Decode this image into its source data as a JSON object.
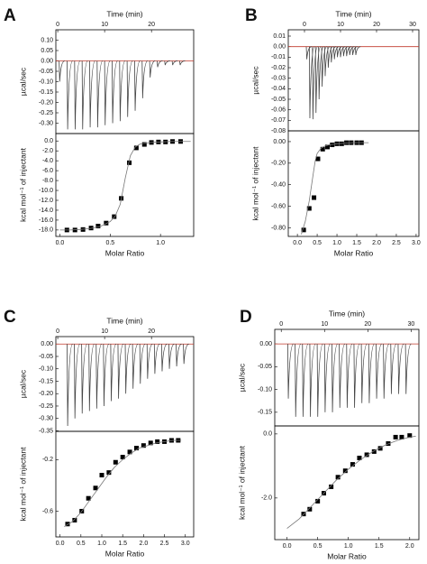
{
  "chart_data": [
    {
      "type": "thermogram",
      "panel": "A",
      "x_label": "Time (min)",
      "y_label": "µcal/sec",
      "xlim": [
        -0.4,
        29
      ],
      "xticks": [
        0,
        10,
        20
      ],
      "ylim": [
        -0.35,
        0.15
      ],
      "yticks": [
        {
          "value": 0.1,
          "label": "0.10"
        },
        0.05,
        {
          "value": 0,
          "label": "0.00"
        },
        -0.05,
        {
          "value": -0.1,
          "label": "-0.10"
        },
        -0.15,
        {
          "value": -0.2,
          "label": "-0.20"
        },
        -0.25,
        {
          "value": -0.3,
          "label": "-0.30"
        }
      ],
      "x": [
        0.3,
        2.0,
        3.6,
        5.2,
        6.8,
        8.4,
        10.0,
        11.6,
        13.2,
        14.8,
        16.4,
        18.0,
        19.6,
        21.2,
        22.8,
        24.4,
        26.0
      ],
      "values": [
        -0.1,
        -0.33,
        -0.33,
        -0.33,
        -0.32,
        -0.32,
        -0.31,
        -0.3,
        -0.29,
        -0.27,
        -0.24,
        -0.18,
        -0.08,
        -0.03,
        -0.02,
        -0.02,
        -0.02
      ],
      "color": "#444444",
      "baseline_color": "#c0392b"
    },
    {
      "type": "scatter",
      "x_label": "Molar Ratio",
      "y_label": "kcal mol⁻¹ of injectant",
      "xlim": [
        -0.04,
        1.33
      ],
      "xticks": [
        {
          "value": 0,
          "label": "0.0"
        },
        0.5,
        {
          "value": 1,
          "label": "1.0"
        }
      ],
      "ylim": [
        -19.3,
        1.5
      ],
      "yticks": [
        {
          "value": 0,
          "label": "0.0"
        },
        {
          "value": -2,
          "label": "-2.0"
        },
        {
          "value": -4,
          "label": "-4.0"
        },
        {
          "value": -6,
          "label": "-6.0"
        },
        {
          "value": -8,
          "label": "-8.0"
        },
        {
          "value": -10,
          "label": "-10.0"
        },
        {
          "value": -12,
          "label": "-12.0"
        },
        {
          "value": -14,
          "label": "-14.0"
        },
        {
          "value": -16,
          "label": "-16.0"
        },
        {
          "value": -18,
          "label": "-18.0"
        }
      ],
      "series": [
        {
          "style": "points",
          "color": "#000000",
          "x": [
            0.07,
            0.15,
            0.23,
            0.31,
            0.38,
            0.46,
            0.54,
            0.61,
            0.69,
            0.76,
            0.84,
            0.91,
            0.98,
            1.05,
            1.12,
            1.2
          ],
          "values": [
            -18.0,
            -18.0,
            -17.9,
            -17.6,
            -17.2,
            -16.6,
            -15.3,
            -11.6,
            -4.4,
            -1.4,
            -0.7,
            -0.3,
            -0.2,
            -0.2,
            -0.1,
            -0.1
          ]
        },
        {
          "style": "line",
          "color": "#777777",
          "x": [
            0,
            0.1,
            0.2,
            0.3,
            0.4,
            0.5,
            0.55,
            0.6,
            0.65,
            0.7,
            0.75,
            0.8,
            0.9,
            1.0,
            1.1,
            1.2,
            1.3
          ],
          "values": [
            -18.0,
            -18.0,
            -17.9,
            -17.7,
            -17.3,
            -16.3,
            -15.2,
            -12.8,
            -7.5,
            -3.0,
            -1.2,
            -0.6,
            -0.3,
            -0.2,
            -0.1,
            -0.1,
            -0.1
          ]
        }
      ]
    },
    {
      "type": "thermogram",
      "panel": "B",
      "x_label": "Time (min)",
      "y_label": "µcal/sec",
      "xlim": [
        -4.5,
        31.75
      ],
      "xticks": [
        0,
        10,
        20,
        30
      ],
      "ylim": [
        -0.08,
        0.016
      ],
      "yticks": [
        0.01,
        {
          "value": 0,
          "label": "0.00"
        },
        -0.01,
        -0.02,
        -0.03,
        -0.04,
        -0.05,
        -0.06,
        -0.07,
        -0.08
      ],
      "x": [
        0.5,
        1.35,
        2.2,
        3.05,
        3.9,
        4.75,
        5.6,
        6.45,
        7.3,
        8.15,
        9.0,
        9.85,
        10.7,
        11.55,
        12.4,
        13.25,
        14.1
      ],
      "values": [
        -0.012,
        -0.068,
        -0.069,
        -0.063,
        -0.05,
        -0.038,
        -0.028,
        -0.02,
        -0.015,
        -0.012,
        -0.01,
        -0.01,
        -0.009,
        -0.009,
        -0.008,
        -0.008,
        -0.008
      ],
      "color": "#444444",
      "baseline_color": "#c0392b"
    },
    {
      "type": "scatter",
      "x_label": "Molar Ratio",
      "y_label": "kcal mol⁻¹ of injectant",
      "xlim": [
        -0.23,
        3.07
      ],
      "xticks": [
        {
          "value": 0,
          "label": "0.0"
        },
        0.5,
        {
          "value": 1,
          "label": "1.0"
        },
        1.5,
        {
          "value": 2,
          "label": "2.0"
        },
        2.5,
        {
          "value": 3,
          "label": "3.0"
        }
      ],
      "ylim": [
        -0.88,
        0.1
      ],
      "yticks": [
        {
          "value": 0,
          "label": "0.00"
        },
        {
          "value": -0.2,
          "label": "-0.20"
        },
        {
          "value": -0.4,
          "label": "-0.40"
        },
        {
          "value": -0.6,
          "label": "-0.60"
        },
        {
          "value": -0.8,
          "label": "-0.80"
        }
      ],
      "series": [
        {
          "style": "points",
          "color": "#000000",
          "x": [
            0.16,
            0.3,
            0.42,
            0.52,
            0.64,
            0.76,
            0.88,
            1.0,
            1.12,
            1.24,
            1.36,
            1.5,
            1.62
          ],
          "values": [
            -0.82,
            -0.62,
            -0.52,
            -0.16,
            -0.07,
            -0.05,
            -0.03,
            -0.02,
            -0.02,
            -0.01,
            -0.01,
            -0.01,
            -0.01
          ]
        },
        {
          "style": "line",
          "color": "#777777",
          "x": [
            0.1,
            0.2,
            0.3,
            0.4,
            0.45,
            0.5,
            0.6,
            0.7,
            0.8,
            1.0,
            1.2,
            1.4,
            1.6,
            1.8
          ],
          "values": [
            -0.86,
            -0.74,
            -0.55,
            -0.3,
            -0.18,
            -0.11,
            -0.06,
            -0.04,
            -0.03,
            -0.02,
            -0.015,
            -0.01,
            -0.01,
            -0.01
          ]
        }
      ]
    },
    {
      "type": "thermogram",
      "panel": "C",
      "x_label": "Time (min)",
      "y_label": "µcal/sec",
      "xlim": [
        -0.4,
        29
      ],
      "xticks": [
        0,
        10,
        20
      ],
      "ylim": [
        -0.352,
        0.03
      ],
      "yticks": [
        {
          "value": 0,
          "label": "0.00"
        },
        -0.05,
        {
          "value": -0.1,
          "label": "-0.10"
        },
        -0.15,
        {
          "value": -0.2,
          "label": "-0.20"
        },
        -0.25,
        {
          "value": -0.3,
          "label": "-0.30"
        },
        -0.35
      ],
      "x": [
        2.0,
        3.55,
        5.1,
        6.65,
        8.2,
        9.75,
        11.3,
        12.85,
        14.4,
        15.95,
        17.5,
        19.05,
        20.6,
        22.15,
        23.7,
        25.25,
        26.8
      ],
      "values": [
        -0.33,
        -0.3,
        -0.28,
        -0.27,
        -0.26,
        -0.25,
        -0.23,
        -0.22,
        -0.2,
        -0.18,
        -0.16,
        -0.14,
        -0.12,
        -0.11,
        -0.1,
        -0.09,
        -0.08
      ],
      "color": "#444444",
      "baseline_color": "#c0392b"
    },
    {
      "type": "scatter",
      "x_label": "Molar Ratio",
      "y_label": "kcal mol⁻¹ of injectant",
      "xlim": [
        -0.1,
        3.2
      ],
      "xticks": [
        {
          "value": 0,
          "label": "0.0"
        },
        0.5,
        {
          "value": 1,
          "label": "1.0"
        },
        1.5,
        {
          "value": 2,
          "label": "2.0"
        },
        2.5,
        {
          "value": 3,
          "label": "3.0"
        }
      ],
      "ylim": [
        -0.8,
        0.02
      ],
      "yticks": [
        -0.2,
        -0.6
      ],
      "series": [
        {
          "style": "points",
          "color": "#000000",
          "x": [
            0.18,
            0.35,
            0.52,
            0.68,
            0.85,
            1.0,
            1.17,
            1.33,
            1.5,
            1.67,
            1.83,
            2.0,
            2.17,
            2.33,
            2.5,
            2.67,
            2.83
          ],
          "values": [
            -0.7,
            -0.67,
            -0.6,
            -0.5,
            -0.42,
            -0.32,
            -0.3,
            -0.22,
            -0.18,
            -0.14,
            -0.11,
            -0.09,
            -0.07,
            -0.06,
            -0.06,
            -0.05,
            -0.05
          ]
        },
        {
          "style": "line",
          "color": "#777777",
          "x": [
            0.1,
            0.3,
            0.5,
            0.7,
            0.9,
            1.1,
            1.3,
            1.5,
            1.7,
            1.9,
            2.1,
            2.3,
            2.5,
            2.7,
            2.9
          ],
          "values": [
            -0.72,
            -0.68,
            -0.61,
            -0.52,
            -0.43,
            -0.34,
            -0.26,
            -0.2,
            -0.15,
            -0.11,
            -0.09,
            -0.07,
            -0.06,
            -0.05,
            -0.05
          ]
        }
      ]
    },
    {
      "type": "thermogram",
      "panel": "D",
      "x_label": "Time (min)",
      "y_label": "µcal/sec",
      "xlim": [
        -1.5,
        31.8
      ],
      "xticks": [
        0,
        10,
        20,
        30
      ],
      "ylim": [
        -0.18,
        0.032
      ],
      "yticks": [
        {
          "value": 0,
          "label": "0.00"
        },
        -0.05,
        {
          "value": -0.1,
          "label": "-0.10"
        },
        -0.15
      ],
      "x": [
        1.5,
        3.2,
        4.9,
        6.6,
        8.3,
        10.0,
        11.7,
        13.4,
        15.1,
        16.8,
        18.5,
        20.2,
        21.9,
        23.6,
        25.3,
        27.0,
        28.7
      ],
      "values": [
        -0.12,
        -0.16,
        -0.16,
        -0.16,
        -0.16,
        -0.15,
        -0.15,
        -0.14,
        -0.14,
        -0.14,
        -0.13,
        -0.13,
        -0.12,
        -0.12,
        -0.11,
        -0.11,
        -0.11
      ],
      "color": "#444444",
      "baseline_color": "#c0392b"
    },
    {
      "type": "scatter",
      "x_label": "Molar Ratio",
      "y_label": "kcal mol⁻¹ of injectant",
      "xlim": [
        -0.2,
        2.15
      ],
      "xticks": [
        {
          "value": 0,
          "label": "0.0"
        },
        0.5,
        {
          "value": 1,
          "label": "1.0"
        },
        1.5,
        {
          "value": 2,
          "label": "2.0"
        }
      ],
      "ylim": [
        -3.3,
        0.25
      ],
      "yticks": [
        {
          "value": 0,
          "label": "0.0"
        },
        {
          "value": -2,
          "label": "-2.0"
        }
      ],
      "series": [
        {
          "style": "points",
          "color": "#000000",
          "x": [
            0.27,
            0.37,
            0.5,
            0.6,
            0.72,
            0.83,
            0.95,
            1.07,
            1.18,
            1.3,
            1.42,
            1.52,
            1.65,
            1.77,
            1.87,
            2.0
          ],
          "values": [
            -2.5,
            -2.35,
            -2.1,
            -1.85,
            -1.65,
            -1.35,
            -1.15,
            -0.95,
            -0.75,
            -0.65,
            -0.55,
            -0.45,
            -0.3,
            -0.1,
            -0.1,
            -0.05
          ]
        },
        {
          "style": "line",
          "color": "#777777",
          "x": [
            0,
            0.2,
            0.4,
            0.6,
            0.8,
            1.0,
            1.2,
            1.4,
            1.6,
            1.8,
            2.0,
            2.1
          ],
          "values": [
            -2.95,
            -2.65,
            -2.25,
            -1.85,
            -1.45,
            -1.1,
            -0.8,
            -0.55,
            -0.35,
            -0.2,
            -0.1,
            -0.07
          ]
        }
      ]
    }
  ]
}
